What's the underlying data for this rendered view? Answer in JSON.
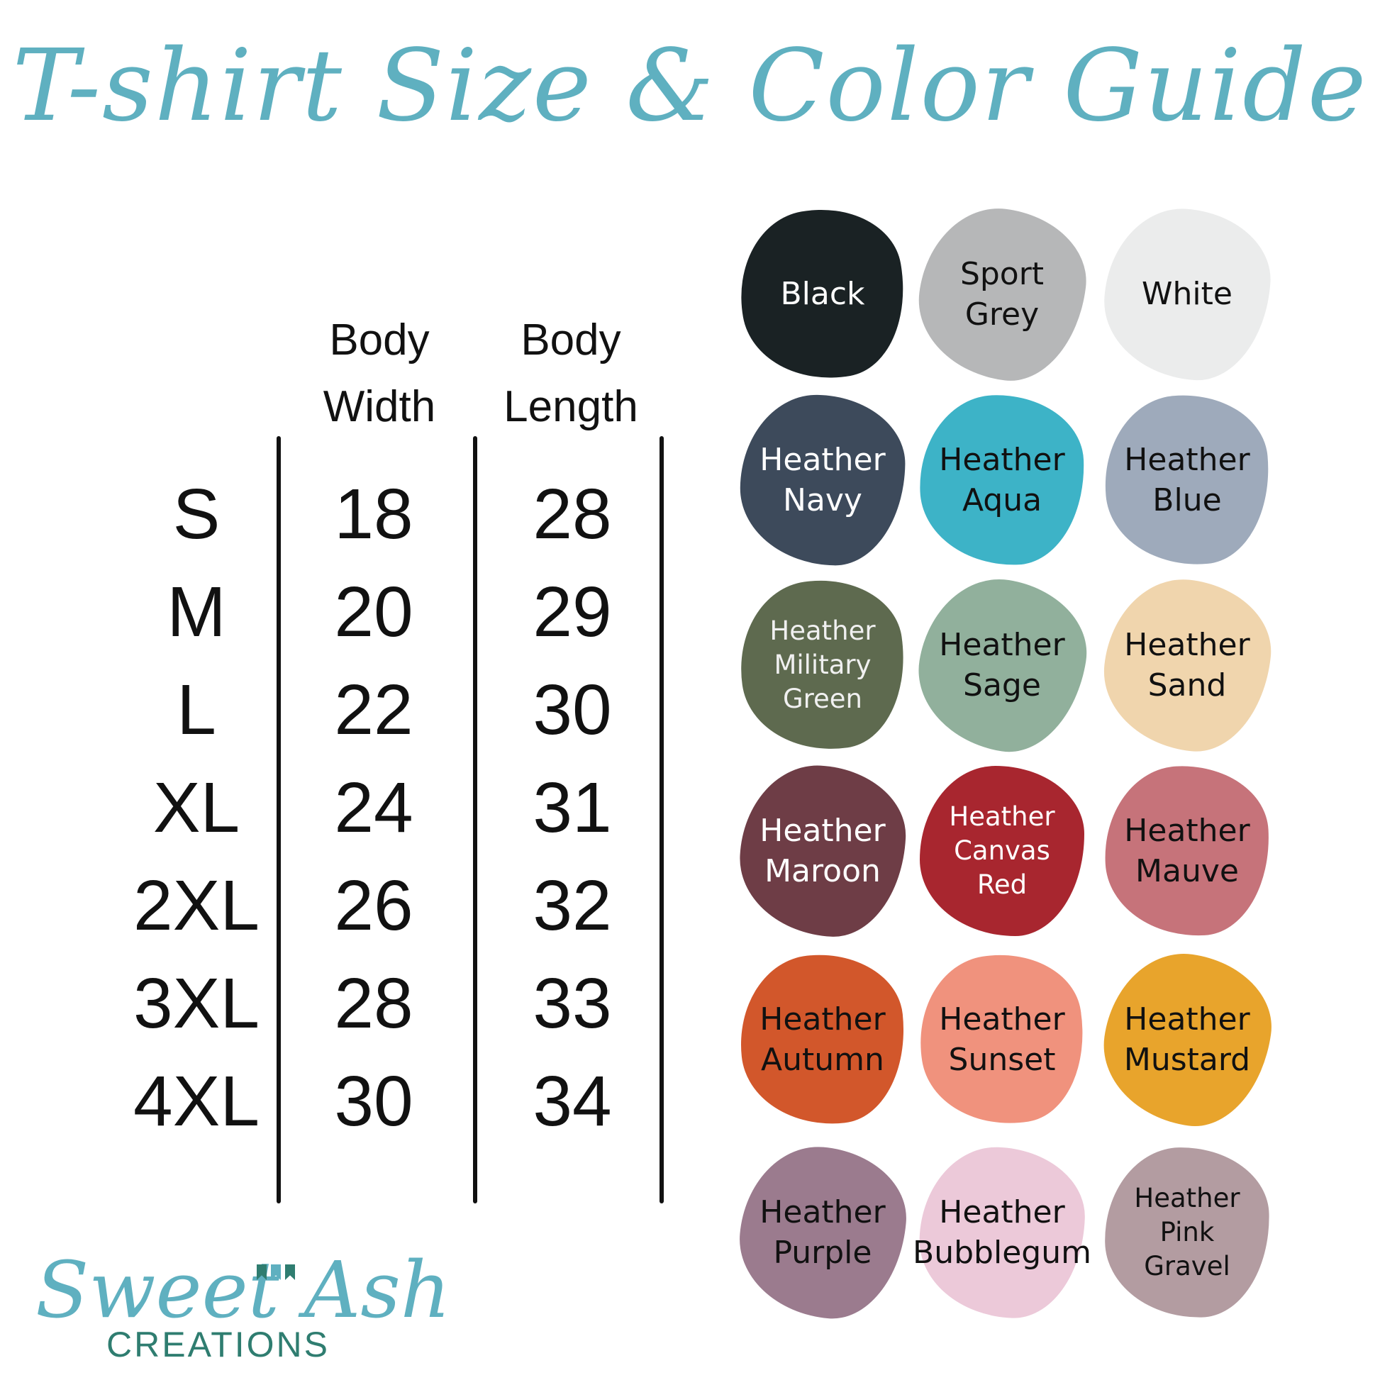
{
  "title": "T-shirt Size & Color Guide",
  "accent_color": "#5fb0c0",
  "size_table": {
    "headers": [
      {
        "line1": "Body",
        "line2": "Width"
      },
      {
        "line1": "Body",
        "line2": "Length"
      }
    ],
    "rows": [
      {
        "size": "S",
        "width": "18",
        "length": "28"
      },
      {
        "size": "M",
        "width": "20",
        "length": "29"
      },
      {
        "size": "L",
        "width": "22",
        "length": "30"
      },
      {
        "size": "XL",
        "width": "24",
        "length": "31"
      },
      {
        "size": "2XL",
        "width": "26",
        "length": "32"
      },
      {
        "size": "3XL",
        "width": "28",
        "length": "33"
      },
      {
        "size": "4XL",
        "width": "30",
        "length": "34"
      }
    ]
  },
  "colors": [
    {
      "label": "Black",
      "swatch": "#1a2224",
      "text": "#ffffff"
    },
    {
      "label": "Sport\nGrey",
      "swatch": "#b6b7b8",
      "text": "#111111"
    },
    {
      "label": "White",
      "swatch": "#ebecec",
      "text": "#111111"
    },
    {
      "label": "Heather\nNavy",
      "swatch": "#3d4a5b",
      "text": "#ffffff"
    },
    {
      "label": "Heather\nAqua",
      "swatch": "#3db3c7",
      "text": "#111111"
    },
    {
      "label": "Heather\nBlue",
      "swatch": "#9eaabb",
      "text": "#111111"
    },
    {
      "label": "Heather\nMilitary\nGreen",
      "swatch": "#5e6a4f",
      "text": "#f0f0f0"
    },
    {
      "label": "Heather\nSage",
      "swatch": "#91b09c",
      "text": "#111111"
    },
    {
      "label": "Heather\nSand",
      "swatch": "#f0d5ad",
      "text": "#111111"
    },
    {
      "label": "Heather\nMaroon",
      "swatch": "#6e3d46",
      "text": "#ffffff"
    },
    {
      "label": "Heather\nCanvas\nRed",
      "swatch": "#a8262f",
      "text": "#ffffff"
    },
    {
      "label": "Heather\nMauve",
      "swatch": "#c6737a",
      "text": "#111111"
    },
    {
      "label": "Heather\nAutumn",
      "swatch": "#d2572b",
      "text": "#111111"
    },
    {
      "label": "Heather\nSunset",
      "swatch": "#f0927d",
      "text": "#111111"
    },
    {
      "label": "Heather\nMustard",
      "swatch": "#e8a42c",
      "text": "#111111"
    },
    {
      "label": "Heather\nPurple",
      "swatch": "#9b7b8e",
      "text": "#111111"
    },
    {
      "label": "Heather\nBubblegum",
      "swatch": "#ecc9d9",
      "text": "#111111"
    },
    {
      "label": "Heather\nPink\nGravel",
      "swatch": "#b39ca1",
      "text": "#111111"
    }
  ],
  "logo": {
    "script": "Sweet Ash",
    "sub": "CREATIONS",
    "flag_colors": [
      "#2f7d70",
      "#5fb0c0",
      "#2f7d70"
    ]
  }
}
